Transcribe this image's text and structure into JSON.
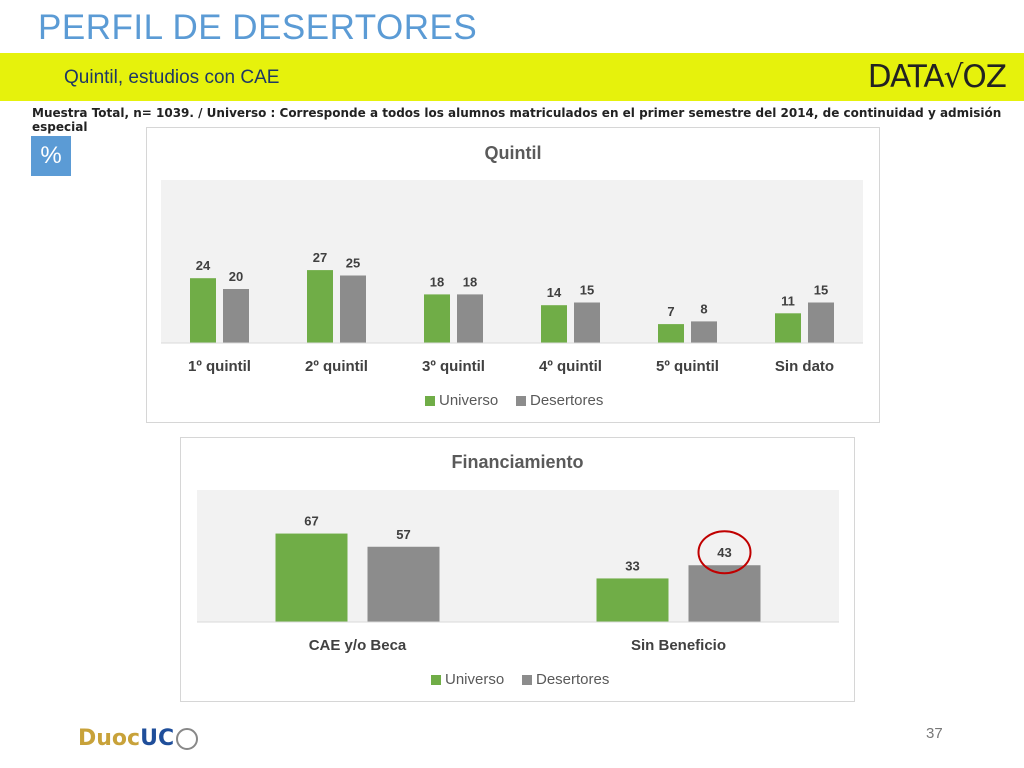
{
  "header": {
    "title": "PERFIL DE DESERTORES",
    "subtitle": "Quintil, estudios con CAE",
    "brand": "DATA√OZ"
  },
  "note": "Muestra Total, n= 1039. / Universo : Corresponde a todos los alumnos matriculados en el primer semestre del 2014, de continuidad y admisión especial",
  "percent_badge": "%",
  "colors": {
    "universo": "#70ad47",
    "desertores": "#8c8c8c",
    "plot_bg": "#f2f2f2",
    "title": "#5a5a5a",
    "highlight": "#c00000"
  },
  "chart_data": [
    {
      "type": "bar",
      "title": "Quintil",
      "categories": [
        "1º quintil",
        "2º quintil",
        "3º quintil",
        "4º quintil",
        "5º quintil",
        "Sin dato"
      ],
      "series": [
        {
          "name": "Universo",
          "values": [
            24,
            27,
            18,
            14,
            7,
            11
          ]
        },
        {
          "name": "Desertores",
          "values": [
            20,
            25,
            18,
            15,
            8,
            15
          ]
        }
      ],
      "legend": "bottom",
      "grid": false
    },
    {
      "type": "bar",
      "title": "Financiamiento",
      "categories": [
        "CAE y/o Beca",
        "Sin Beneficio"
      ],
      "series": [
        {
          "name": "Universo",
          "values": [
            67,
            33
          ]
        },
        {
          "name": "Desertores",
          "values": [
            57,
            43
          ]
        }
      ],
      "legend": "bottom",
      "grid": false,
      "highlight": {
        "series": 1,
        "category": 1
      }
    }
  ],
  "footer": {
    "logo_part1": "Duoc",
    "logo_part2": "UC",
    "page_number": "37"
  }
}
